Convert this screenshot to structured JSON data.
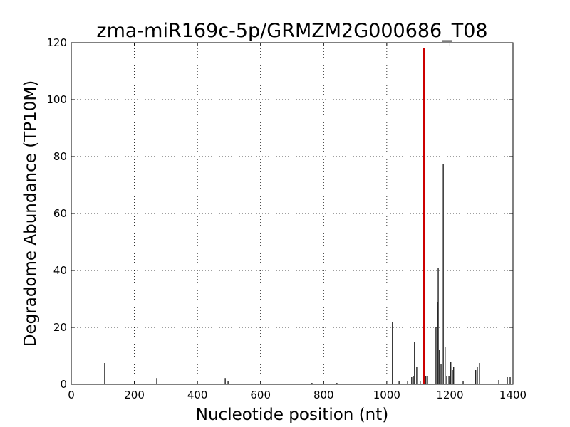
{
  "chart_data": {
    "type": "stick",
    "title": "zma-miR169c-5p/GRMZM2G000686_T08",
    "x_label": "Nucleotide position (nt)",
    "y_label": "Degradome Abundance (TP10M)",
    "xlim": [
      0,
      1400
    ],
    "xticks": [
      0,
      200,
      400,
      600,
      800,
      1000,
      1200,
      1400
    ],
    "ylim": [
      0,
      120
    ],
    "yticks": [
      0,
      20,
      40,
      60,
      80,
      100,
      120
    ],
    "grid": true,
    "series": [
      {
        "color": "#000000",
        "x": [
          106,
          271,
          488,
          497,
          763,
          842,
          1018,
          1039,
          1066,
          1079,
          1084,
          1088,
          1095,
          1106,
          1124,
          1129,
          1156,
          1160,
          1163,
          1167,
          1172,
          1179,
          1185,
          1190,
          1197,
          1203,
          1208,
          1212,
          1242,
          1282,
          1287,
          1294,
          1355,
          1382,
          1391
        ],
        "values": [
          7.5,
          2.2,
          2.2,
          1,
          0.5,
          0.5,
          22,
          1,
          1,
          2.5,
          3,
          15,
          6,
          1,
          3,
          3,
          20,
          29,
          41,
          12,
          7,
          77.5,
          13,
          3,
          3,
          8,
          5,
          6,
          1,
          5,
          6,
          7.5,
          1.5,
          2.5,
          2.5
        ]
      },
      {
        "color": "#cc0000",
        "x": [
          1118
        ],
        "values": [
          118
        ]
      }
    ]
  }
}
